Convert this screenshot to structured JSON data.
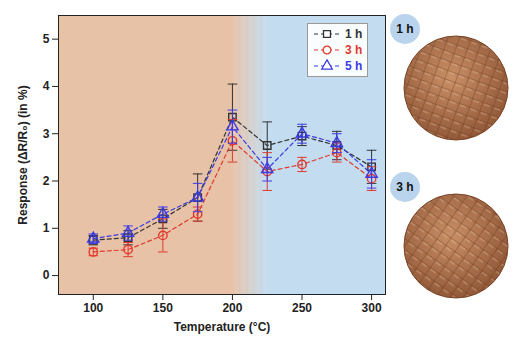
{
  "chart_data": {
    "type": "line",
    "x_label": "Temperature (°C)",
    "y_label": "Response (ΔR/R₀) (in %)",
    "x": [
      100,
      125,
      150,
      175,
      200,
      225,
      250,
      275,
      300
    ],
    "series": [
      {
        "name": "1 h",
        "color": "#333333",
        "marker": "square",
        "line_style": "dashed",
        "values": [
          0.75,
          0.8,
          1.2,
          1.65,
          3.35,
          2.75,
          2.95,
          2.75,
          2.3
        ],
        "errors": [
          0.1,
          0.15,
          0.2,
          0.5,
          0.7,
          0.5,
          0.2,
          0.3,
          0.35
        ]
      },
      {
        "name": "3 h",
        "color": "#e03a2e",
        "marker": "circle",
        "line_style": "dashed",
        "values": [
          0.5,
          0.55,
          0.85,
          1.3,
          2.85,
          2.2,
          2.35,
          2.6,
          2.05
        ],
        "errors": [
          0.08,
          0.15,
          0.35,
          0.15,
          0.45,
          0.4,
          0.15,
          0.2,
          0.25
        ]
      },
      {
        "name": "5 h",
        "color": "#3b3be6",
        "marker": "triangle",
        "line_style": "dashed",
        "values": [
          0.78,
          0.9,
          1.3,
          1.65,
          3.15,
          2.25,
          3.0,
          2.8,
          2.15
        ],
        "errors": [
          0.1,
          0.15,
          0.15,
          0.3,
          0.35,
          0.25,
          0.2,
          0.2,
          0.3
        ]
      }
    ],
    "xlim": [
      75,
      310
    ],
    "xticks": [
      100,
      150,
      200,
      250,
      300
    ],
    "ylim": [
      -0.4,
      5.5
    ],
    "yticks": [
      0,
      1,
      2,
      3,
      4,
      5
    ],
    "grid": false,
    "legend": "upper right",
    "background_regions": [
      {
        "xlim": [
          75,
          200
        ],
        "color": "#e8c2a6"
      },
      {
        "xlim": [
          225,
          310
        ],
        "color": "#c3dcef"
      }
    ],
    "insets": [
      {
        "label": "1 h"
      },
      {
        "label": "3 h"
      }
    ]
  }
}
